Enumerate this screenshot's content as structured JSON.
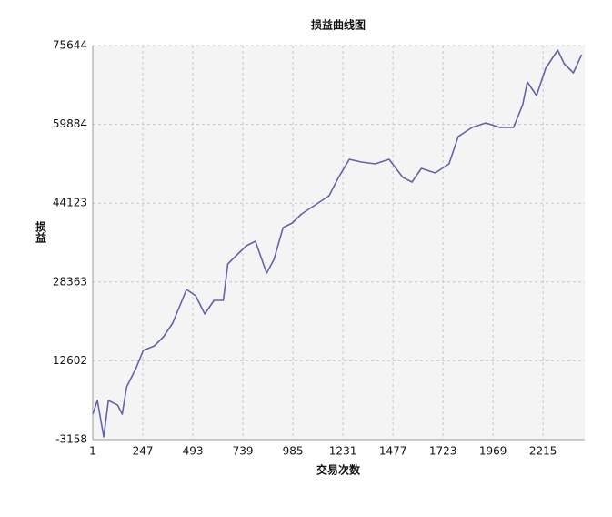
{
  "chart_data": {
    "type": "line",
    "title": "损益曲线图",
    "x_label": "交易次数",
    "y_label": "损益",
    "xlim": [
      1,
      2420
    ],
    "xticks": [
      1,
      247,
      493,
      739,
      985,
      1231,
      1477,
      1723,
      1969,
      2215
    ],
    "ylim": [
      -3158,
      75644
    ],
    "yticks": [
      -3158,
      12602,
      28363,
      44123,
      59884,
      75644
    ],
    "grid": true,
    "series": [
      {
        "color": "#6464aa",
        "x": [
          1,
          24,
          55,
          78,
          123,
          146,
          168,
          213,
          249,
          304,
          349,
          394,
          440,
          462,
          507,
          552,
          597,
          643,
          665,
          710,
          756,
          801,
          824,
          856,
          892,
          937,
          982,
          1028,
          1096,
          1163,
          1209,
          1263,
          1322,
          1390,
          1458,
          1526,
          1571,
          1617,
          1685,
          1753,
          1798,
          1866,
          1934,
          2002,
          2070,
          2115,
          2138,
          2183,
          2228,
          2287,
          2319,
          2364,
          2405
        ],
        "values": [
          1934,
          4664,
          -2616,
          4664,
          3754,
          1934,
          7394,
          11034,
          14674,
          15584,
          17404,
          20134,
          24684,
          26868,
          25594,
          21954,
          24684,
          24684,
          31964,
          33784,
          35604,
          36514,
          33784,
          30144,
          32874,
          39244,
          40154,
          41974,
          43794,
          45614,
          49254,
          52894,
          52348,
          51984,
          52894,
          49254,
          48344,
          51074,
          50164,
          51984,
          57444,
          59264,
          60174,
          59264,
          59264,
          63814,
          68364,
          65634,
          71094,
          74734,
          72004,
          70184,
          73824
        ]
      }
    ]
  }
}
